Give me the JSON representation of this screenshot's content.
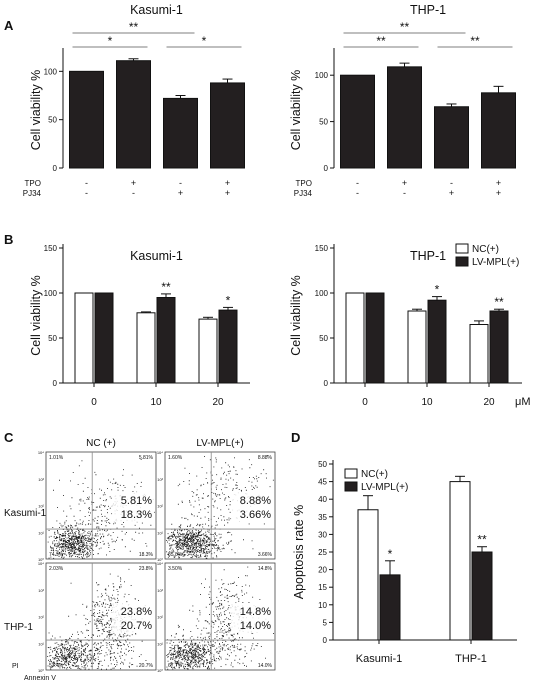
{
  "panel_labels": {
    "A": "A",
    "B": "B",
    "C": "C",
    "D": "D"
  },
  "chart_data": [
    {
      "id": "A1",
      "type": "bar",
      "title": "Kasumi-1",
      "ylabel": "Cell viability %",
      "ylim": [
        0,
        120
      ],
      "yticks": [
        0,
        50,
        100
      ],
      "categories": [
        "TPO- PJ34-",
        "TPO+ PJ34-",
        "TPO- PJ34+",
        "TPO+ PJ34+"
      ],
      "values": [
        100,
        111,
        72,
        88
      ],
      "errors": [
        0,
        2,
        3,
        4
      ],
      "treatment_rows": [
        {
          "label": "TPO",
          "marks": [
            "-",
            "+",
            "-",
            "+"
          ]
        },
        {
          "label": "PJ34",
          "marks": [
            "-",
            "-",
            "+",
            "+"
          ]
        }
      ],
      "brackets": [
        {
          "from": 0,
          "to": 2,
          "label": "**",
          "level": 2
        },
        {
          "from": 0,
          "to": 1,
          "label": "*",
          "level": 1
        },
        {
          "from": 2,
          "to": 3,
          "label": "*",
          "level": 1
        }
      ]
    },
    {
      "id": "A2",
      "type": "bar",
      "title": "THP-1",
      "ylabel": "Cell viability %",
      "ylim": [
        0,
        125
      ],
      "yticks": [
        0,
        50,
        100
      ],
      "categories": [
        "TPO- PJ34-",
        "TPO+ PJ34-",
        "TPO- PJ34+",
        "TPO+ PJ34+"
      ],
      "values": [
        100,
        109,
        66,
        81
      ],
      "errors": [
        0,
        4,
        3,
        7
      ],
      "treatment_rows": [
        {
          "label": "TPO",
          "marks": [
            "-",
            "+",
            "-",
            "+"
          ]
        },
        {
          "label": "PJ34",
          "marks": [
            "-",
            "-",
            "+",
            "+"
          ]
        }
      ],
      "brackets": [
        {
          "from": 0,
          "to": 2,
          "label": "**",
          "level": 2
        },
        {
          "from": 0,
          "to": 1,
          "label": "**",
          "level": 1
        },
        {
          "from": 2,
          "to": 3,
          "label": "**",
          "level": 1
        }
      ]
    },
    {
      "id": "B1",
      "type": "bar",
      "title": "Kasumi-1",
      "ylabel": "Cell viability %",
      "ylim": [
        0,
        150
      ],
      "yticks": [
        0,
        50,
        100,
        150
      ],
      "categories": [
        "0",
        "10",
        "20"
      ],
      "unit": "",
      "series": [
        {
          "name": "NC(+)",
          "values": [
            100,
            78,
            71
          ],
          "errors": [
            0,
            1,
            2
          ],
          "sig": [
            "",
            "",
            ""
          ]
        },
        {
          "name": "LV-MPL(+)",
          "values": [
            100,
            95,
            81
          ],
          "errors": [
            0,
            4,
            3
          ],
          "sig": [
            "",
            "**",
            "*"
          ]
        }
      ]
    },
    {
      "id": "B2",
      "type": "bar",
      "title": "THP-1",
      "ylabel": "Cell viability %",
      "ylim": [
        0,
        150
      ],
      "yticks": [
        0,
        50,
        100,
        150
      ],
      "categories": [
        "0",
        "10",
        "20"
      ],
      "unit": "μM",
      "series": [
        {
          "name": "NC(+)",
          "values": [
            100,
            80,
            65
          ],
          "errors": [
            0,
            2,
            4
          ],
          "sig": [
            "",
            "",
            ""
          ]
        },
        {
          "name": "LV-MPL(+)",
          "values": [
            100,
            92,
            80
          ],
          "errors": [
            0,
            4,
            2
          ],
          "sig": [
            "",
            "*",
            "**"
          ]
        }
      ],
      "legend": [
        "NC(+)",
        "LV-MPL(+)"
      ]
    },
    {
      "id": "D",
      "type": "bar",
      "title": "",
      "ylabel": "Apoptosis rate %",
      "ylim": [
        0,
        50
      ],
      "yticks": [
        0,
        5,
        10,
        15,
        20,
        25,
        30,
        35,
        40,
        45,
        50
      ],
      "categories": [
        "Kasumi-1",
        "THP-1"
      ],
      "series": [
        {
          "name": "NC(+)",
          "values": [
            37,
            45
          ],
          "errors": [
            4,
            1.5
          ],
          "sig": [
            "",
            ""
          ]
        },
        {
          "name": "LV-MPL(+)",
          "values": [
            18.5,
            25
          ],
          "errors": [
            4,
            1.5
          ],
          "sig": [
            "*",
            "**"
          ]
        }
      ],
      "legend": [
        "NC(+)",
        "LV-MPL(+)"
      ]
    }
  ],
  "flow": {
    "column_titles": [
      "NC (+)",
      "LV-MPL(+)"
    ],
    "row_labels": [
      "Kasumi-1",
      "THP-1"
    ],
    "x_axis_label": "Annexin V",
    "y_axis_label": "PI",
    "tick_labels": [
      "10⁰",
      "10¹",
      "10²",
      "10³",
      "10⁴"
    ],
    "plots": [
      {
        "upper": "5.81%",
        "lower": "18.3%",
        "q_ul": "1.01%",
        "q_ur": "5.81%",
        "q_ll": "74.9%",
        "q_lr": "18.3%"
      },
      {
        "upper": "8.88%",
        "lower": "3.66%",
        "q_ul": "1.60%",
        "q_ur": "8.88%",
        "q_ll": "85.8%",
        "q_lr": "3.66%"
      },
      {
        "upper": "23.8%",
        "lower": "20.7%",
        "q_ul": "2.03%",
        "q_ur": "23.8%",
        "q_ll": "53.4%",
        "q_lr": "20.7%"
      },
      {
        "upper": "14.8%",
        "lower": "14.0%",
        "q_ul": "3.50%",
        "q_ur": "14.8%",
        "q_ll": "67.7%",
        "q_lr": "14.0%"
      }
    ]
  }
}
